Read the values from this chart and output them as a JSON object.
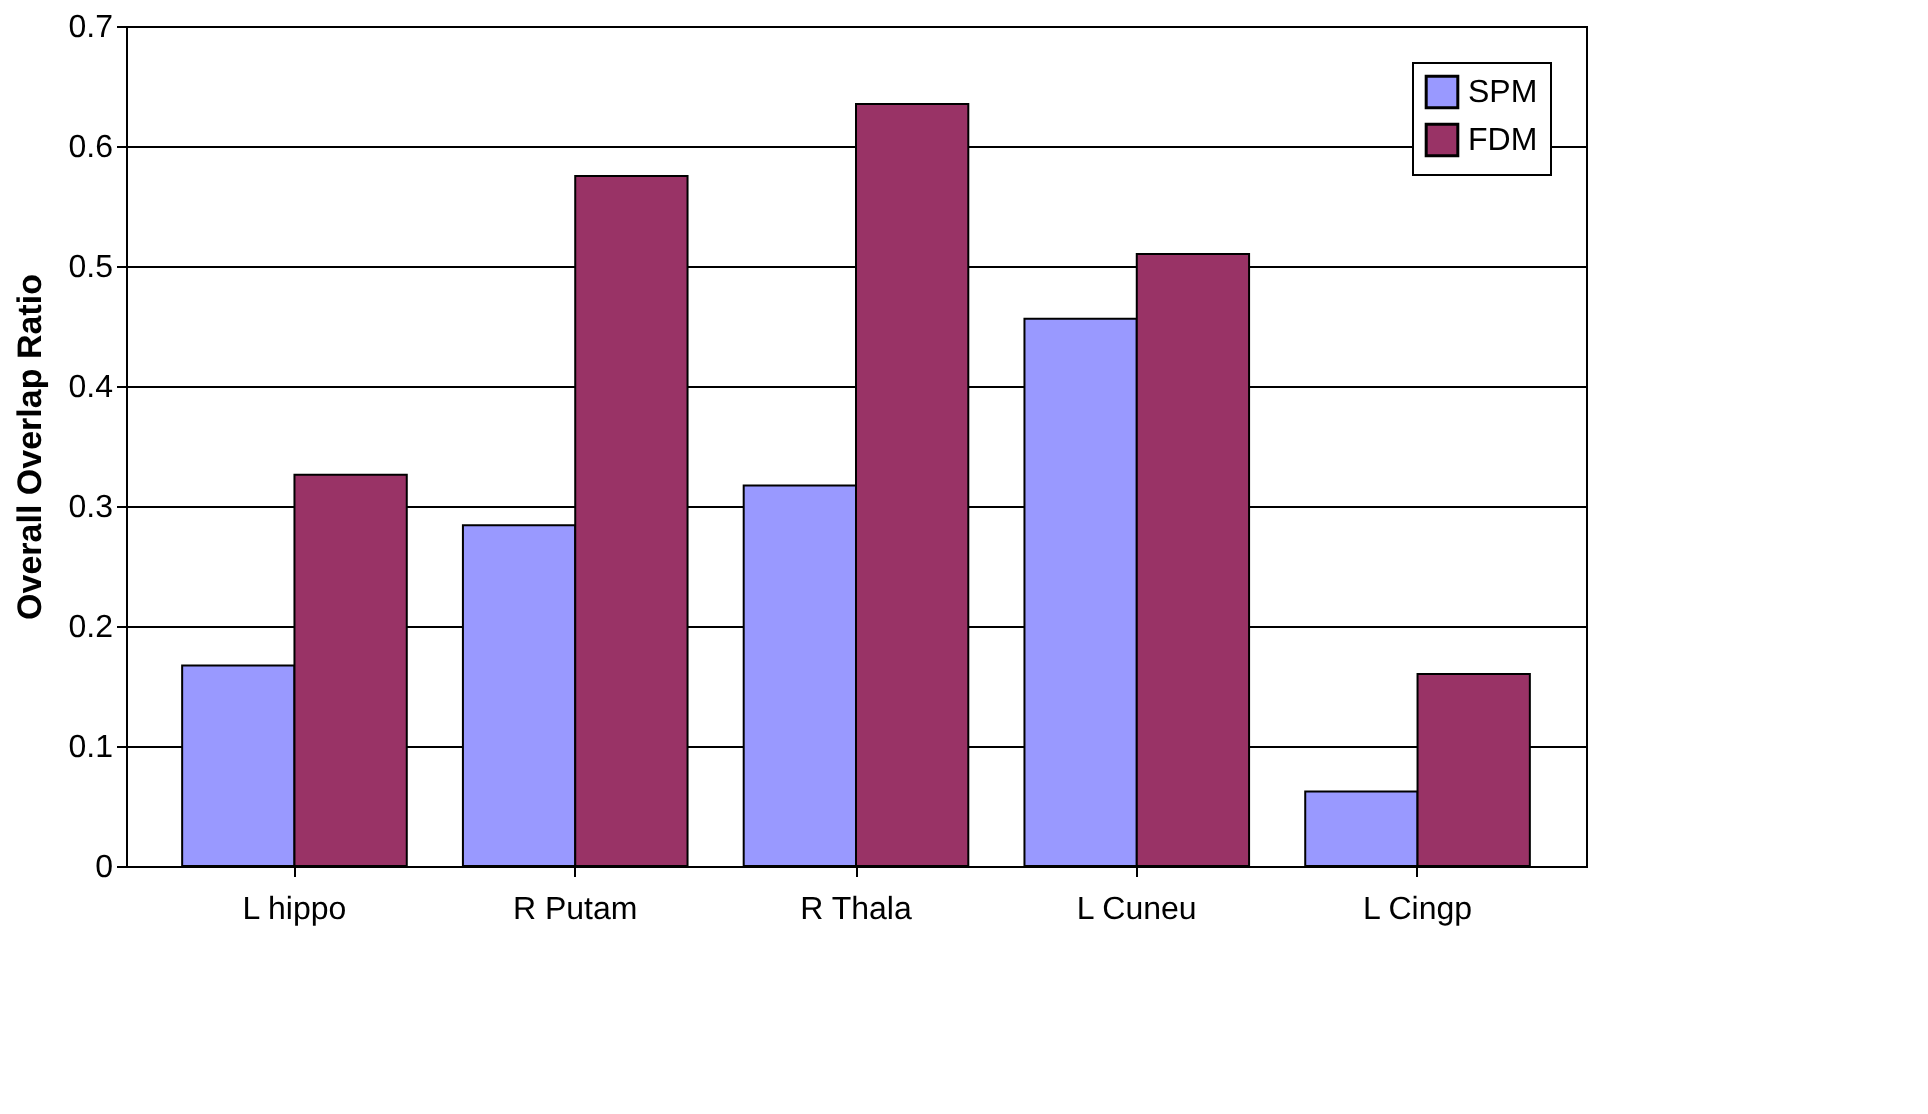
{
  "chart_data": {
    "type": "bar",
    "ylabel": "Overall Overlap Ratio",
    "categories": [
      "L hippo",
      "R Putam",
      "R Thala",
      "L Cuneu",
      "L Cingp"
    ],
    "series": [
      {
        "name": "SPM",
        "color": "#9999ff",
        "values": [
          0.167,
          0.284,
          0.317,
          0.456,
          0.062
        ]
      },
      {
        "name": "FDM",
        "color": "#993366",
        "values": [
          0.326,
          0.575,
          0.635,
          0.51,
          0.16
        ]
      }
    ],
    "ylim": [
      0,
      0.7
    ],
    "yticks": [
      0,
      0.1,
      0.2,
      0.3,
      0.4,
      0.5,
      0.6,
      0.7
    ],
    "grid": "y",
    "legend": "top right"
  }
}
